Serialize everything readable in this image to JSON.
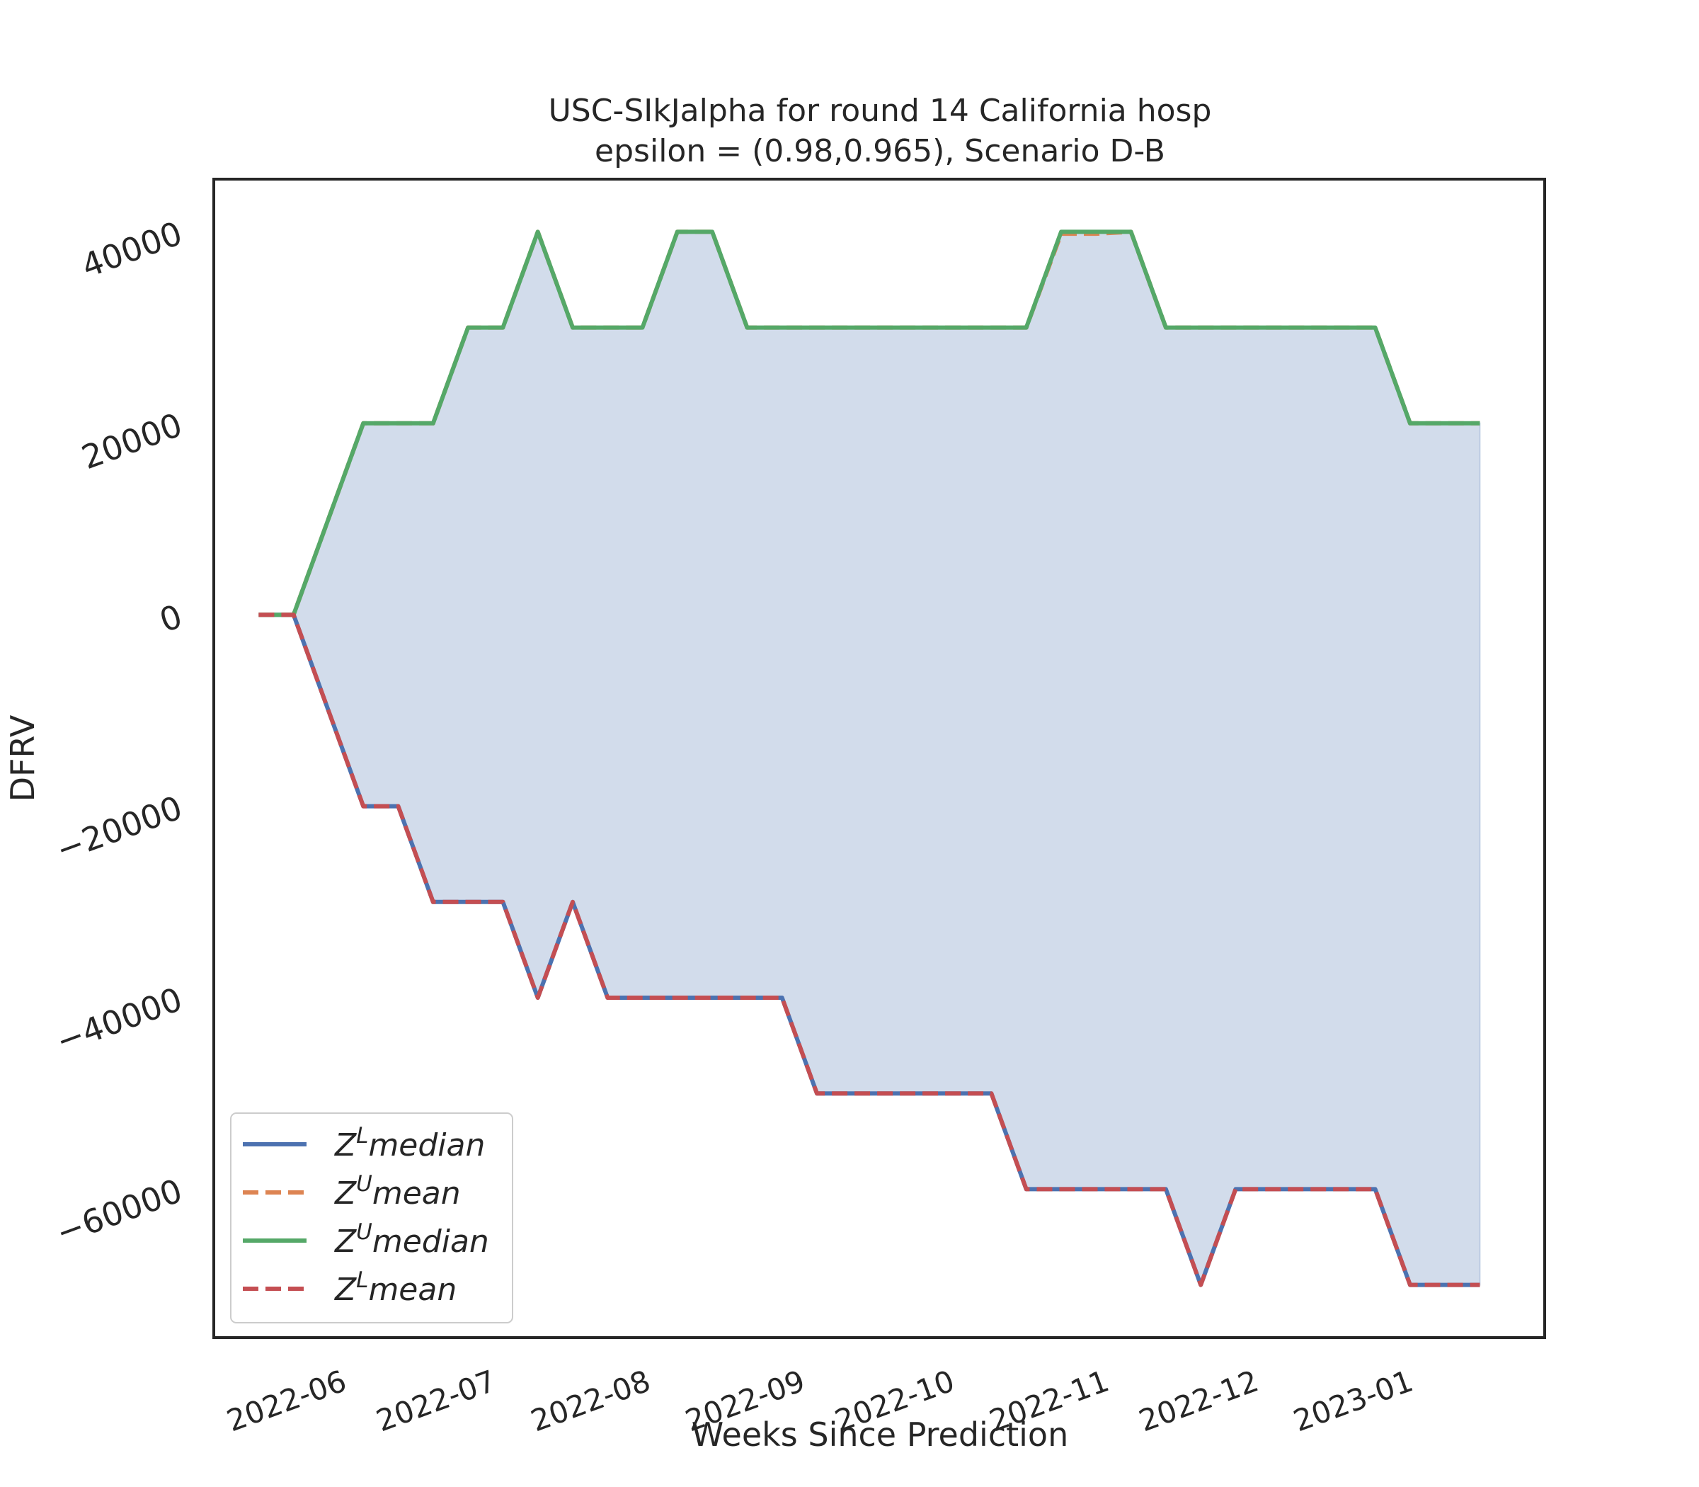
{
  "chart_data": {
    "type": "line",
    "title": "USC-SIkJalpha for round 14 California  hosp",
    "subtitle": "epsilon = (0.98,0.965), Scenario D-B",
    "xlabel": "Weeks Since Prediction",
    "ylabel": "DFRV",
    "x_ticks": [
      "2022-06",
      "2022-07",
      "2022-08",
      "2022-09",
      "2022-10",
      "2022-11",
      "2022-12",
      "2023-01"
    ],
    "y_ticks": [
      -60000,
      -40000,
      -20000,
      0,
      20000,
      40000
    ],
    "xlim": [
      "2022-05-05",
      "2023-01-27"
    ],
    "ylim": [
      -75500,
      45500
    ],
    "grid": false,
    "legend_position": "lower-left",
    "x": [
      "2022-05-14",
      "2022-05-21",
      "2022-05-28",
      "2022-06-04",
      "2022-06-11",
      "2022-06-18",
      "2022-06-25",
      "2022-07-02",
      "2022-07-09",
      "2022-07-16",
      "2022-07-23",
      "2022-07-30",
      "2022-08-06",
      "2022-08-13",
      "2022-08-20",
      "2022-08-27",
      "2022-09-03",
      "2022-09-10",
      "2022-09-17",
      "2022-09-24",
      "2022-10-01",
      "2022-10-08",
      "2022-10-15",
      "2022-10-22",
      "2022-10-29",
      "2022-11-05",
      "2022-11-12",
      "2022-11-19",
      "2022-11-26",
      "2022-12-03",
      "2022-12-10",
      "2022-12-17",
      "2022-12-24",
      "2022-12-31",
      "2023-01-07",
      "2023-01-14"
    ],
    "series": [
      {
        "name": "Z^L median",
        "style": "solid",
        "color": "#4C72B0",
        "values": [
          0,
          0,
          -10000,
          -20000,
          -20000,
          -30000,
          -30000,
          -30000,
          -40000,
          -30000,
          -40000,
          -40000,
          -40000,
          -40000,
          -40000,
          -40000,
          -50000,
          -50000,
          -50000,
          -50000,
          -50000,
          -50000,
          -60000,
          -60000,
          -60000,
          -60000,
          -60000,
          -70000,
          -60000,
          -60000,
          -60000,
          -60000,
          -60000,
          -70000,
          -70000,
          -70000
        ]
      },
      {
        "name": "Z^U mean",
        "style": "dashed",
        "color": "#DD8452",
        "values": [
          0,
          0,
          10000,
          20000,
          20000,
          20000,
          30000,
          30000,
          40000,
          30000,
          30000,
          30000,
          40000,
          40000,
          30000,
          30000,
          30000,
          30000,
          30000,
          30000,
          30000,
          30000,
          30000,
          39800,
          39800,
          40000,
          30000,
          30000,
          30000,
          30000,
          30000,
          30000,
          30000,
          20000,
          20000,
          20000
        ]
      },
      {
        "name": "Z^U median",
        "style": "solid",
        "color": "#55A868",
        "values": [
          0,
          0,
          10000,
          20000,
          20000,
          20000,
          30000,
          30000,
          40000,
          30000,
          30000,
          30000,
          40000,
          40000,
          30000,
          30000,
          30000,
          30000,
          30000,
          30000,
          30000,
          30000,
          30000,
          40000,
          40000,
          40000,
          30000,
          30000,
          30000,
          30000,
          30000,
          30000,
          30000,
          20000,
          20000,
          20000
        ]
      },
      {
        "name": "Z^L mean",
        "style": "dashed",
        "color": "#C44E52",
        "values": [
          0,
          0,
          -10000,
          -20000,
          -20000,
          -30000,
          -30000,
          -30000,
          -40000,
          -30000,
          -40000,
          -40000,
          -40000,
          -40000,
          -40000,
          -40000,
          -50000,
          -50000,
          -50000,
          -50000,
          -50000,
          -50000,
          -60000,
          -60000,
          -60000,
          -60000,
          -60000,
          -70000,
          -60000,
          -60000,
          -60000,
          -60000,
          -60000,
          -70000,
          -70000,
          -70000
        ]
      }
    ],
    "legend": [
      {
        "sym": "Z",
        "sup": "L",
        "word": "median",
        "color": "#4C72B0",
        "style": "solid"
      },
      {
        "sym": "Z",
        "sup": "U",
        "word": "mean",
        "color": "#DD8452",
        "style": "dashed"
      },
      {
        "sym": "Z",
        "sup": "U",
        "word": "median",
        "color": "#55A868",
        "style": "solid"
      },
      {
        "sym": "Z",
        "sup": "L",
        "word": "mean",
        "color": "#C44E52",
        "style": "dashed"
      }
    ],
    "fill_color": "#4C72B0",
    "fill_between": [
      "Z^L median",
      "Z^U median"
    ]
  }
}
